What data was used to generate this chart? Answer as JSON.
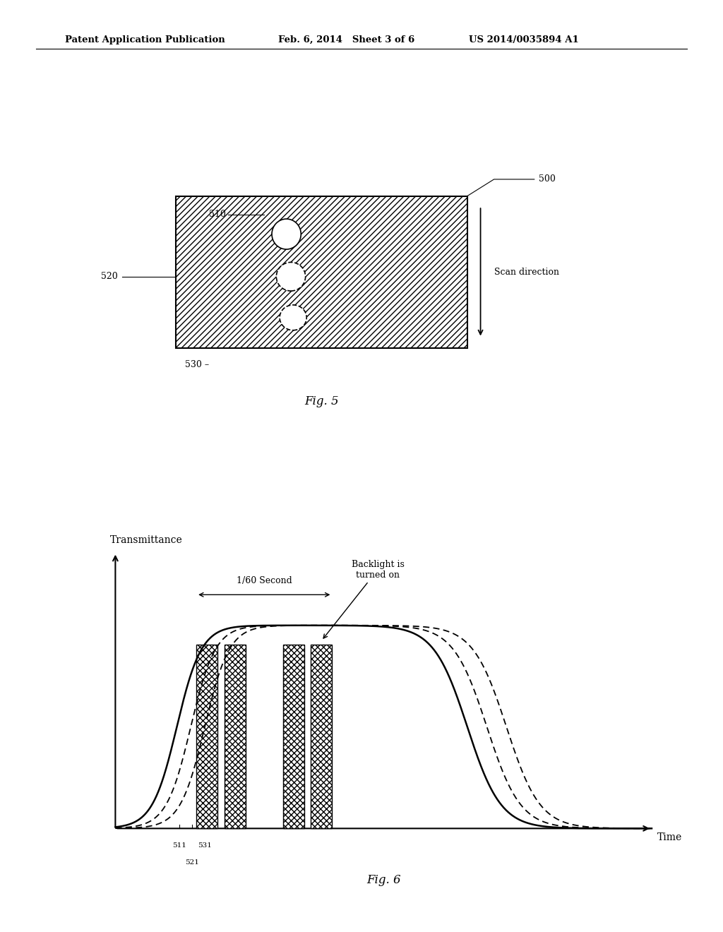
{
  "header_left": "Patent Application Publication",
  "header_mid": "Feb. 6, 2014   Sheet 3 of 6",
  "header_right": "US 2014/0035894 A1",
  "fig5_label": "Fig. 5",
  "fig6_label": "Fig. 6",
  "label_500": "500",
  "label_510": "510",
  "label_520": "520",
  "label_530": "530",
  "scan_direction": "Scan direction",
  "transmittance_label": "Transmittance",
  "time_label": "Time",
  "one_60_second": "1/60 Second",
  "backlight_label": "Backlight is\nturned on",
  "label_511": "511",
  "label_521": "521",
  "label_531": "531",
  "bg_color": "#ffffff"
}
